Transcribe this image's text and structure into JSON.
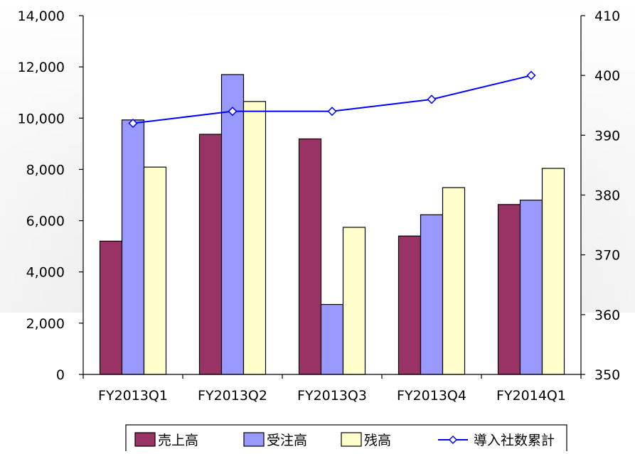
{
  "chart_data": {
    "type": "bar",
    "categories": [
      "FY2013Q1",
      "FY2013Q2",
      "FY2013Q3",
      "FY2013Q4",
      "FY2014Q1"
    ],
    "series": [
      {
        "name": "売上高",
        "type": "bar",
        "axis": "left",
        "color": "#993366",
        "values": [
          5200,
          9370,
          9190,
          5400,
          6630
        ]
      },
      {
        "name": "受注高",
        "type": "bar",
        "axis": "left",
        "color": "#9999ff",
        "values": [
          9930,
          11700,
          2730,
          6230,
          6800
        ]
      },
      {
        "name": "残高",
        "type": "bar",
        "axis": "left",
        "color": "#ffffcc",
        "values": [
          8090,
          10650,
          5740,
          7290,
          8040
        ]
      },
      {
        "name": "導入社数累計",
        "type": "line",
        "axis": "right",
        "color": "#0000ff",
        "marker": "diamond-open",
        "values": [
          392,
          394,
          394,
          396,
          400
        ]
      }
    ],
    "y_left": {
      "min": 0,
      "max": 14000,
      "ticks": [
        0,
        2000,
        4000,
        6000,
        8000,
        10000,
        12000,
        14000
      ],
      "tick_labels": [
        "0",
        "2,000",
        "4,000",
        "6,000",
        "8,000",
        "10,000",
        "12,000",
        "14,000"
      ]
    },
    "y_right": {
      "min": 350,
      "max": 410,
      "ticks": [
        350,
        360,
        370,
        380,
        390,
        400,
        410
      ],
      "tick_labels": [
        "350",
        "360",
        "370",
        "380",
        "390",
        "400",
        "410"
      ]
    },
    "grid": false,
    "legend": {
      "position": "bottom",
      "entries": [
        "売上高",
        "受注高",
        "残高",
        "導入社数累計"
      ]
    }
  }
}
